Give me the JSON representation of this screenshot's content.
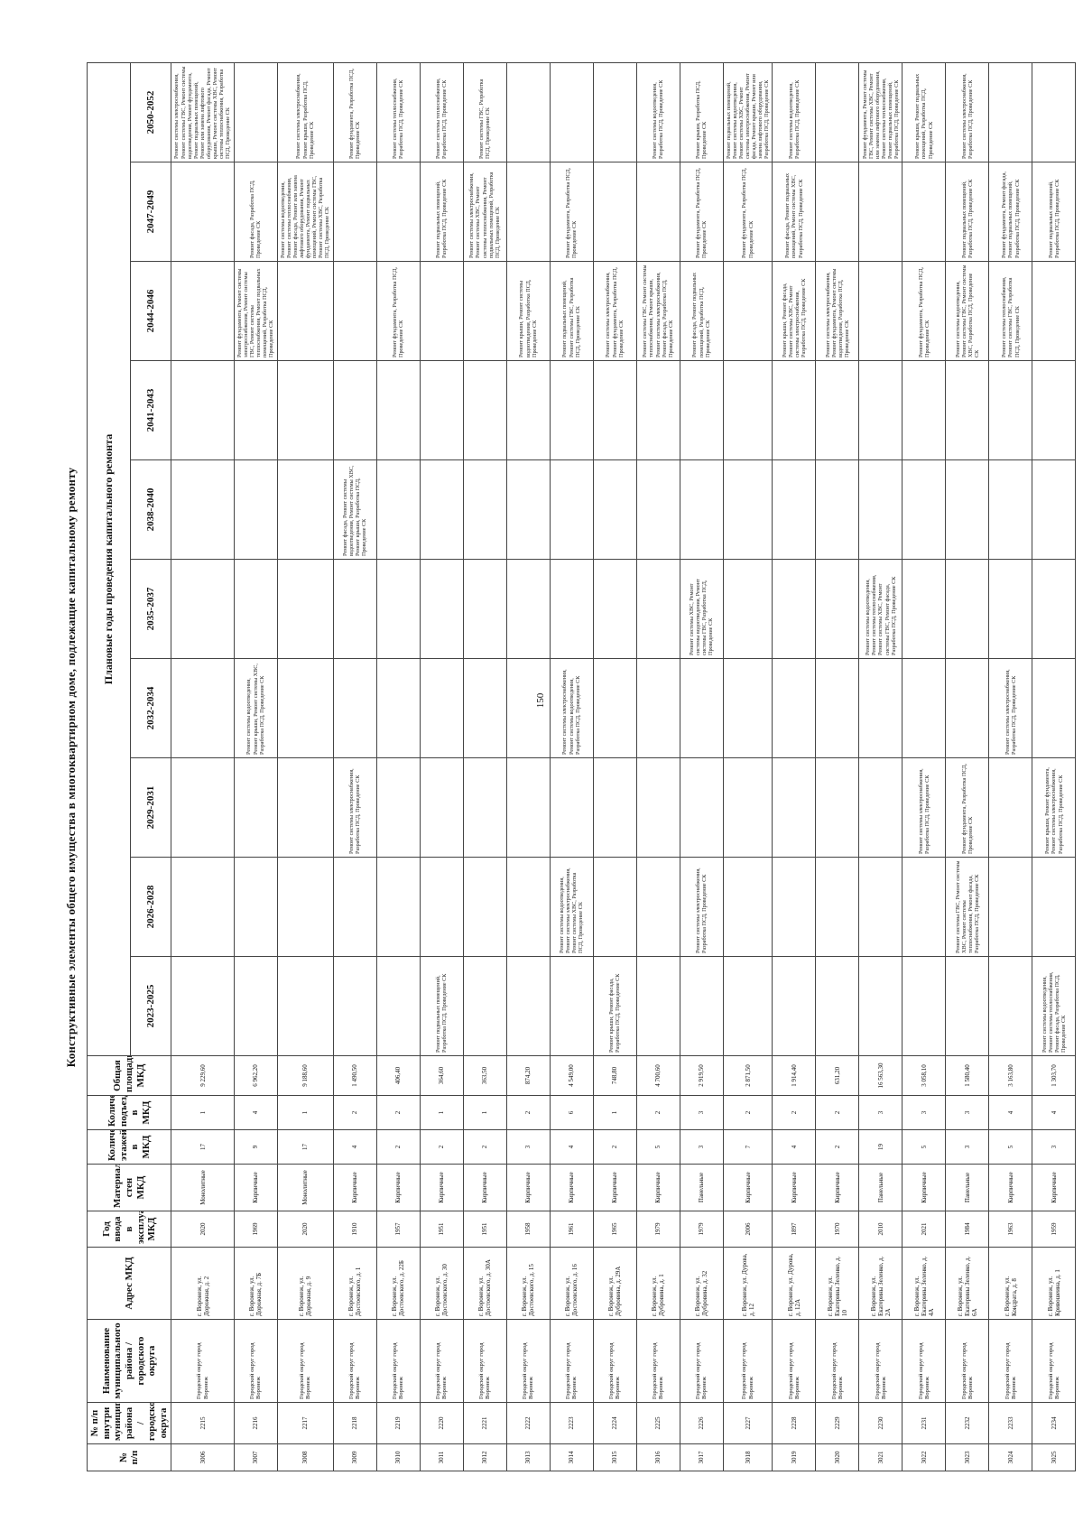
{
  "page_number": "150",
  "title": "Конструктивные элементы общего имущества в многоквартирном доме, подлежащие капитальному ремонту",
  "planned_years_header": "Плановые годы проведения капитального ремонта",
  "columns": {
    "n": "№ п/п",
    "n_mun": "№ п/п внутри муниципального района / городского округа",
    "region": "Наименование муниципального района / городского округа",
    "address": "Адрес МКД",
    "year": "Год ввода в эксплуатацию МКД",
    "material": "Материал стен МКД",
    "floors": "Количество этажей в МКД",
    "entrances": "Количество подъездов в МКД",
    "area": "Общая площадь МКД",
    "p1": "2023-2025",
    "p2": "2026-2028",
    "p3": "2029-2031",
    "p4": "2032-2034",
    "p5": "2035-2037",
    "p6": "2038-2040",
    "p7": "2041-2043",
    "p8": "2044-2046",
    "p9": "2047-2049",
    "p10": "2050-2052"
  },
  "rows": [
    {
      "n": "3006",
      "n_mun": "2215",
      "region": "Городской округ город Воронеж",
      "address": "г. Воронеж, ул. Дорожная, д. 2",
      "year": "2020",
      "material": "Монолитные",
      "floors": "17",
      "entrances": "1",
      "area": "9 229,60",
      "p1": "",
      "p2": "",
      "p3": "",
      "p4": "",
      "p5": "",
      "p6": "",
      "p7": "",
      "p8": "",
      "p9": "",
      "p10": "Ремонт системы электроснабжения, Ремонт системы ГВС, Ремонт системы водоотведения, Ремонт фундамента, Ремонт подвальных помещений, Ремонт или замена лифтового оборудования, Ремонт фасада, Ремонт крыши, Ремонт системы ХВС, Ремонт системы теплоснабжения, Разработка ПСД, Проведение СК"
    },
    {
      "n": "3007",
      "n_mun": "2216",
      "region": "Городской округ город Воронеж",
      "address": "г. Воронеж, ул. Дорожная, д. 7Б",
      "year": "1969",
      "material": "Кирпичные",
      "floors": "9",
      "entrances": "4",
      "area": "6 962,20",
      "p1": "",
      "p2": "",
      "p3": "",
      "p4": "Ремонт системы водоотведения, Ремонт крыши, Ремонт системы ХВС, Разработка ПСД, Проведение СК",
      "p5": "",
      "p6": "",
      "p7": "",
      "p8": "Ремонт фундамента, Ремонт системы электроснабжения, Ремонт системы ГВС, Ремонт системы теплоснабжения, Ремонт подвальных помещений, Разработка ПСД, Проведение СК",
      "p9": "Ремонт фасада, Разработка ПСД, Проведение СК",
      "p10": ""
    },
    {
      "n": "3008",
      "n_mun": "2217",
      "region": "Городской округ город Воронеж",
      "address": "г. Воронеж, ул. Дорожная, д. 9",
      "year": "2020",
      "material": "Монолитные",
      "floors": "17",
      "entrances": "1",
      "area": "9 188,60",
      "p1": "",
      "p2": "",
      "p3": "",
      "p4": "",
      "p5": "",
      "p6": "",
      "p7": "",
      "p8": "",
      "p9": "Ремонт системы водоотведения, Ремонт системы теплоснабжения, Ремонт фасада, Ремонт или замена лифтового оборудования, Ремонт фундамента, Ремонт подвальных помещений, Ремонт системы ГВС, Ремонт системы ХВС, Разработка ПСД, Проведение СК",
      "p10": "Ремонт системы электроснабжения, Ремонт крыши, Разработка ПСД, Проведение СК"
    },
    {
      "n": "3009",
      "n_mun": "2218",
      "region": "Городской округ город Воронеж",
      "address": "г. Воронеж, ул. Достоевского, д. 1",
      "year": "1910",
      "material": "Кирпичные",
      "floors": "4",
      "entrances": "2",
      "area": "1 490,50",
      "p1": "",
      "p2": "",
      "p3": "Ремонт системы электроснабжения, Разработка ПСД, Проведение СК",
      "p4": "",
      "p5": "",
      "p6": "Ремонт фасада, Ремонт системы водоотведения, Ремонт системы ХВС, Ремонт крыши, Разработка ПСД, Проведение СК",
      "p7": "",
      "p8": "",
      "p9": "",
      "p10": "Ремонт фундамента, Разработка ПСД, Проведение СК"
    },
    {
      "n": "3010",
      "n_mun": "2219",
      "region": "Городской округ город Воронеж",
      "address": "г. Воронеж, ул. Достоевского, д. 22Б",
      "year": "1957",
      "material": "Кирпичные",
      "floors": "2",
      "entrances": "2",
      "area": "406,40",
      "p1": "",
      "p2": "",
      "p3": "",
      "p4": "",
      "p5": "",
      "p6": "",
      "p7": "",
      "p8": "Ремонт фундамента, Разработка ПСД, Проведение СК",
      "p9": "",
      "p10": "Ремонт системы теплоснабжения, Разработка ПСД, Проведение СК"
    },
    {
      "n": "3011",
      "n_mun": "2220",
      "region": "Городской округ город Воронеж",
      "address": "г. Воронеж, ул. Достоевского, д. 30",
      "year": "1951",
      "material": "Кирпичные",
      "floors": "2",
      "entrances": "1",
      "area": "364,60",
      "p1": "Ремонт подвальных помещений, Разработка ПСД, Проведение СК",
      "p2": "",
      "p3": "",
      "p4": "",
      "p5": "",
      "p6": "",
      "p7": "",
      "p8": "",
      "p9": "Ремонт подвальных помещений, Разработка ПСД, Проведение СК",
      "p10": "Ремонт системы теплоснабжения, Разработка ПСД, Проведение СК"
    },
    {
      "n": "3012",
      "n_mun": "2221",
      "region": "Городской округ город Воронеж",
      "address": "г. Воронеж, ул. Достоевского, д. 30А",
      "year": "1951",
      "material": "Кирпичные",
      "floors": "2",
      "entrances": "1",
      "area": "363,50",
      "p1": "",
      "p2": "",
      "p3": "",
      "p4": "",
      "p5": "",
      "p6": "",
      "p7": "",
      "p8": "",
      "p9": "Ремонт системы электроснабжения, Ремонт системы ХВС, Ремонт системы теплоснабжения, Ремонт подвальных помещений, Разработка ПСД, Проведение СК",
      "p10": "Ремонт системы ГВС, Разработка ПСД, Проведение СК"
    },
    {
      "n": "3013",
      "n_mun": "2222",
      "region": "Городской округ город Воронеж",
      "address": "г. Воронеж, ул. Достоевского, д. 15",
      "year": "1958",
      "material": "Кирпичные",
      "floors": "3",
      "entrances": "2",
      "area": "874,20",
      "p1": "",
      "p2": "",
      "p3": "",
      "p4": "",
      "p5": "",
      "p6": "",
      "p7": "",
      "p8": "Ремонт крыши, Ремонт системы водоотведения, Разработка ПСД, Проведение СК",
      "p9": "",
      "p10": ""
    },
    {
      "n": "3014",
      "n_mun": "2223",
      "region": "Городской округ город Воронеж",
      "address": "г. Воронеж, ул. Достоевского, д. 16",
      "year": "1961",
      "material": "Кирпичные",
      "floors": "4",
      "entrances": "6",
      "area": "4 549,00",
      "p1": "",
      "p2": "Ремонт системы водоотведения, Ремонт системы электроснабжения, Ремонт системы ХВС, Разработка ПСД, Проведение СК",
      "p3": "",
      "p4": "Ремонт системы электроснабжения, Ремонт системы водоотведения, Разработка ПСД, Проведение СК",
      "p5": "",
      "p6": "",
      "p7": "",
      "p8": "Ремонт подвальных помещений, Ремонт системы ГВС, Разработка ПСД, Проведение СК",
      "p9": "Ремонт фундамента, Разработка ПСД, Проведение СК",
      "p10": ""
    },
    {
      "n": "3015",
      "n_mun": "2224",
      "region": "Городской округ город Воронеж",
      "address": "г. Воронеж, ул. Дубровина, д. 29А",
      "year": "1965",
      "material": "Кирпичные",
      "floors": "2",
      "entrances": "1",
      "area": "748,80",
      "p1": "Ремонт крыши, Ремонт фасада, Разработка ПСД, Проведение СК",
      "p2": "",
      "p3": "",
      "p4": "",
      "p5": "",
      "p6": "",
      "p7": "",
      "p8": "Ремонт системы электроснабжения, Ремонт фундамента, Разработка ПСД, Проведение СК",
      "p9": "",
      "p10": ""
    },
    {
      "n": "3016",
      "n_mun": "2225",
      "region": "Городской округ город Воронеж",
      "address": "г. Воронеж, ул. Дубровина, д. 1",
      "year": "1979",
      "material": "Кирпичные",
      "floors": "5",
      "entrances": "2",
      "area": "4 700,60",
      "p1": "",
      "p2": "",
      "p3": "",
      "p4": "",
      "p5": "",
      "p6": "",
      "p7": "",
      "p8": "Ремонт системы ГВС, Ремонт системы теплоснабжения, Ремонт крыши, Ремонт системы электроснабжения, Ремонт фасада, Разработка ПСД, Проведение СК",
      "p9": "",
      "p10": "Ремонт системы водоотведения, Разработка ПСД, Проведение СК"
    },
    {
      "n": "3017",
      "n_mun": "2226",
      "region": "Городской округ город Воронеж",
      "address": "г. Воронеж, ул. Дубровина, д. 32",
      "year": "1979",
      "material": "Панельные",
      "floors": "3",
      "entrances": "3",
      "area": "2 919,50",
      "p1": "",
      "p2": "Ремонт системы электроснабжения, Разработка ПСД, Проведение СК",
      "p3": "",
      "p4": "",
      "p5": "Ремонт системы ХВС, Ремонт системы водоотведения, Ремонт системы ГВС, Разработка ПСД, Проведение СК",
      "p6": "",
      "p7": "",
      "p8": "Ремонт фасада, Ремонт подвальных помещений, Разработка ПСД, Проведение СК",
      "p9": "Ремонт фундамента, Разработка ПСД, Проведение СК",
      "p10": "Ремонт крыши, Разработка ПСД, Проведение СК"
    },
    {
      "n": "3018",
      "n_mun": "2227",
      "region": "Городской округ город Воронеж",
      "address": "г. Воронеж, ул. Дурова, д. 12",
      "year": "2006",
      "material": "Кирпичные",
      "floors": "7",
      "entrances": "2",
      "area": "2 871,50",
      "p1": "",
      "p2": "",
      "p3": "",
      "p4": "",
      "p5": "",
      "p6": "",
      "p7": "",
      "p8": "",
      "p9": "Ремонт фундамента, Разработка ПСД, Проведение СК",
      "p10": "Ремонт подвальных помещений, Ремонт системы водоотведения, Ремонт системы ХВС, Ремонт системы электроснабжения, Ремонт фасада, Ремонт крыши, Ремонт или замена лифтового оборудования, Разработка ПСД, Проведение СК"
    },
    {
      "n": "3019",
      "n_mun": "2228",
      "region": "Городской округ город Воронеж",
      "address": "г. Воронеж, ул. Дурова, д. 12А",
      "year": "1897",
      "material": "Кирпичные",
      "floors": "4",
      "entrances": "2",
      "area": "1 914,40",
      "p1": "",
      "p2": "",
      "p3": "",
      "p4": "",
      "p5": "",
      "p6": "",
      "p7": "",
      "p8": "Ремонт крыши, Ремонт фасада, Ремонт системы ХВС, Ремонт системы электроснабжения, Разработка ПСД, Проведение СК",
      "p9": "Ремонт фасада, Ремонт подвальных помещений, Ремонт системы ХВС, Разработка ПСД, Проведение СК",
      "p10": "Ремонт системы водоотведения, Разработка ПСД, Проведение СК"
    },
    {
      "n": "3020",
      "n_mun": "2229",
      "region": "Городской округ город Воронеж",
      "address": "г. Воронеж, ул. Екатерины Зеленко, д. 10",
      "year": "1970",
      "material": "Кирпичные",
      "floors": "2",
      "entrances": "2",
      "area": "631,20",
      "p1": "",
      "p2": "",
      "p3": "",
      "p4": "",
      "p5": "",
      "p6": "",
      "p7": "",
      "p8": "Ремонт системы электроснабжения, Ремонт фундамента, Ремонт системы водоотведения, Разработка ПСД, Проведение СК",
      "p9": "",
      "p10": ""
    },
    {
      "n": "3021",
      "n_mun": "2230",
      "region": "Городской округ город Воронеж",
      "address": "г. Воронеж, ул. Екатерины Зеленко, д. 2А",
      "year": "2010",
      "material": "Панельные",
      "floors": "19",
      "entrances": "3",
      "area": "16 563,30",
      "p1": "",
      "p2": "",
      "p3": "",
      "p4": "",
      "p5": "Ремонт системы водоотведения, Ремонт системы теплоснабжения, Ремонт системы ХВС, Ремонт системы ГВС, Ремонт фасада, Разработка ПСД, Проведение СК",
      "p6": "",
      "p7": "",
      "p8": "",
      "p9": "",
      "p10": "Ремонт фундамента, Ремонт системы ГВС, Ремонт системы ХВС, Ремонт или замена лифтового оборудования, Ремонт системы теплоснабжения, Ремонт подвальных помещений, Разработка ПСД, Проведение СК"
    },
    {
      "n": "3022",
      "n_mun": "2231",
      "region": "Городской округ город Воронеж",
      "address": "г. Воронеж, ул. Екатерины Зеленко, д. 4А",
      "year": "2021",
      "material": "Кирпичные",
      "floors": "5",
      "entrances": "3",
      "area": "3 058,10",
      "p1": "",
      "p2": "",
      "p3": "Ремонт системы электроснабжения, Разработка ПСД, Проведение СК",
      "p4": "",
      "p5": "",
      "p6": "",
      "p7": "",
      "p8": "Ремонт фундамента, Разработка ПСД, Проведение СК",
      "p9": "",
      "p10": "Ремонт крыши, Ремонт подвальных помещений, Разработка ПСД, Проведение СК"
    },
    {
      "n": "3023",
      "n_mun": "2232",
      "region": "Городской округ город Воронеж",
      "address": "г. Воронеж, ул. Екатерины Зеленко, д. 6А",
      "year": "1984",
      "material": "Панельные",
      "floors": "3",
      "entrances": "3",
      "area": "1 580,40",
      "p1": "",
      "p2": "Ремонт системы ГВС, Ремонт системы ХВС, Ремонт системы теплоснабжения, Ремонт фасада, Разработка ПСД, Проведение СК",
      "p3": "Ремонт фундамента, Разработка ПСД, Проведение СК",
      "p4": "",
      "p5": "",
      "p6": "",
      "p7": "",
      "p8": "Ремонт системы водоотведения, Ремонт системы ГВС, Ремонт системы ХВС, Разработка ПСД, Проведение СК",
      "p9": "Ремонт подвальных помещений, Разработка ПСД, Проведение СК",
      "p10": "Ремонт системы электроснабжения, Разработка ПСД, Проведение СК"
    },
    {
      "n": "3024",
      "n_mun": "2233",
      "region": "Городской округ город Воронеж",
      "address": "г. Воронеж, ул. Кондрата, д. 8",
      "year": "1963",
      "material": "Кирпичные",
      "floors": "5",
      "entrances": "4",
      "area": "3 163,80",
      "p1": "",
      "p2": "",
      "p3": "",
      "p4": "Ремонт системы электроснабжения, Разработка ПСД, Проведение СК",
      "p5": "",
      "p6": "",
      "p7": "",
      "p8": "Ремонт системы теплоснабжения, Ремонт системы ГВС, Разработка ПСД, Проведение СК",
      "p9": "Ремонт фундамента, Ремонт фасада, Ремонт подвальных помещений, Разработка ПСД, Проведение СК",
      "p10": ""
    },
    {
      "n": "3025",
      "n_mun": "2234",
      "region": "Городской округ город Воронеж",
      "address": "г. Воронеж, ул. Кривошеина, д. 1",
      "year": "1959",
      "material": "Кирпичные",
      "floors": "3",
      "entrances": "4",
      "area": "1 303,70",
      "p1": "Ремонт системы водоотведения, Ремонт системы теплоснабжения, Ремонт фасада, Разработка ПСД, Проведение СК",
      "p2": "",
      "p3": "Ремонт крыши, Ремонт фундамента, Ремонт системы электроснабжения, Разработка ПСД, Проведение СК",
      "p4": "",
      "p5": "",
      "p6": "",
      "p7": "",
      "p8": "",
      "p9": "Ремонт подвальных помещений, Разработка ПСД, Проведение СК",
      "p10": ""
    }
  ]
}
